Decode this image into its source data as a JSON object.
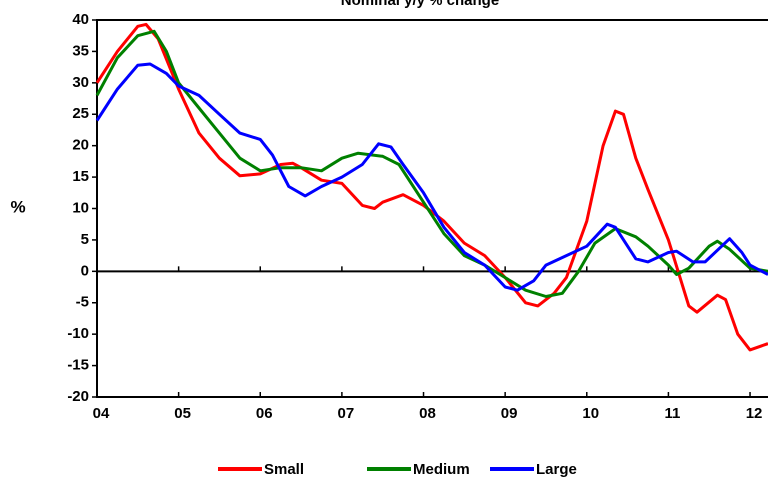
{
  "chart_data": {
    "type": "line",
    "title": "Nominal y/y % change",
    "ylabel": "%",
    "xlim": [
      2004,
      2012.22
    ],
    "ylim": [
      -20,
      40
    ],
    "xticks": [
      {
        "value": 2004,
        "label": "04"
      },
      {
        "value": 2005,
        "label": "05"
      },
      {
        "value": 2006,
        "label": "06"
      },
      {
        "value": 2007,
        "label": "07"
      },
      {
        "value": 2008,
        "label": "08"
      },
      {
        "value": 2009,
        "label": "09"
      },
      {
        "value": 2010,
        "label": "10"
      },
      {
        "value": 2011,
        "label": "11"
      },
      {
        "value": 2012,
        "label": "12"
      }
    ],
    "yticks": [
      -20,
      -15,
      -10,
      -5,
      0,
      5,
      10,
      15,
      20,
      25,
      30,
      35,
      40
    ],
    "series": [
      {
        "name": "Small",
        "color": "#ff0000",
        "x": [
          2004.0,
          2004.25,
          2004.5,
          2004.6,
          2004.75,
          2005.0,
          2005.25,
          2005.5,
          2005.75,
          2006.0,
          2006.25,
          2006.4,
          2006.5,
          2006.75,
          2007.0,
          2007.25,
          2007.4,
          2007.5,
          2007.75,
          2008.0,
          2008.25,
          2008.5,
          2008.75,
          2009.0,
          2009.25,
          2009.4,
          2009.6,
          2009.75,
          2010.0,
          2010.2,
          2010.35,
          2010.45,
          2010.6,
          2010.75,
          2011.0,
          2011.25,
          2011.35,
          2011.6,
          2011.7,
          2011.85,
          2012.0,
          2012.22
        ],
        "values": [
          30,
          35,
          39,
          39.3,
          37,
          29,
          22,
          18,
          15.2,
          15.5,
          17,
          17.2,
          16.5,
          14.5,
          14,
          10.5,
          10,
          11,
          12.2,
          10.5,
          8,
          4.5,
          2.5,
          -1,
          -5,
          -5.5,
          -3.5,
          -1,
          8,
          20,
          25.5,
          25,
          18,
          13,
          5,
          -5.5,
          -6.5,
          -3.8,
          -4.5,
          -10,
          -12.5,
          -11.5
        ]
      },
      {
        "name": "Medium",
        "color": "#008000",
        "x": [
          2004.0,
          2004.25,
          2004.5,
          2004.7,
          2004.85,
          2005.0,
          2005.25,
          2005.5,
          2005.75,
          2006.0,
          2006.25,
          2006.5,
          2006.75,
          2007.0,
          2007.2,
          2007.5,
          2007.7,
          2008.0,
          2008.25,
          2008.5,
          2008.75,
          2009.0,
          2009.25,
          2009.5,
          2009.7,
          2009.9,
          2010.1,
          2010.35,
          2010.6,
          2010.75,
          2011.0,
          2011.1,
          2011.25,
          2011.5,
          2011.6,
          2011.75,
          2012.0,
          2012.22
        ],
        "values": [
          28,
          34,
          37.5,
          38.2,
          35,
          30,
          26,
          22,
          18,
          16,
          16.5,
          16.5,
          16,
          18,
          18.8,
          18.3,
          17,
          11,
          6,
          2.5,
          1,
          -1,
          -3,
          -4,
          -3.5,
          0,
          4.5,
          6.8,
          5.5,
          4,
          1,
          -0.5,
          0.5,
          4,
          4.8,
          3.5,
          0.5,
          0
        ]
      },
      {
        "name": "Large",
        "color": "#0000ff",
        "x": [
          2004.0,
          2004.25,
          2004.5,
          2004.65,
          2004.85,
          2005.0,
          2005.25,
          2005.5,
          2005.75,
          2006.0,
          2006.15,
          2006.35,
          2006.55,
          2006.75,
          2007.0,
          2007.25,
          2007.45,
          2007.6,
          2007.75,
          2008.0,
          2008.25,
          2008.5,
          2008.75,
          2009.0,
          2009.15,
          2009.35,
          2009.5,
          2009.75,
          2010.0,
          2010.25,
          2010.35,
          2010.5,
          2010.6,
          2010.75,
          2011.0,
          2011.1,
          2011.3,
          2011.45,
          2011.75,
          2011.9,
          2012.0,
          2012.22
        ],
        "values": [
          24,
          29,
          32.8,
          33,
          31.5,
          29.5,
          28,
          25,
          22,
          21,
          18.5,
          13.5,
          12,
          13.5,
          15,
          17,
          20.3,
          19.8,
          17,
          12.5,
          7,
          3,
          1,
          -2.5,
          -3,
          -1.5,
          1,
          2.5,
          4,
          7.5,
          7,
          4,
          2,
          1.5,
          3,
          3.2,
          1.5,
          1.5,
          5.2,
          3,
          1,
          -0.5
        ]
      }
    ]
  }
}
